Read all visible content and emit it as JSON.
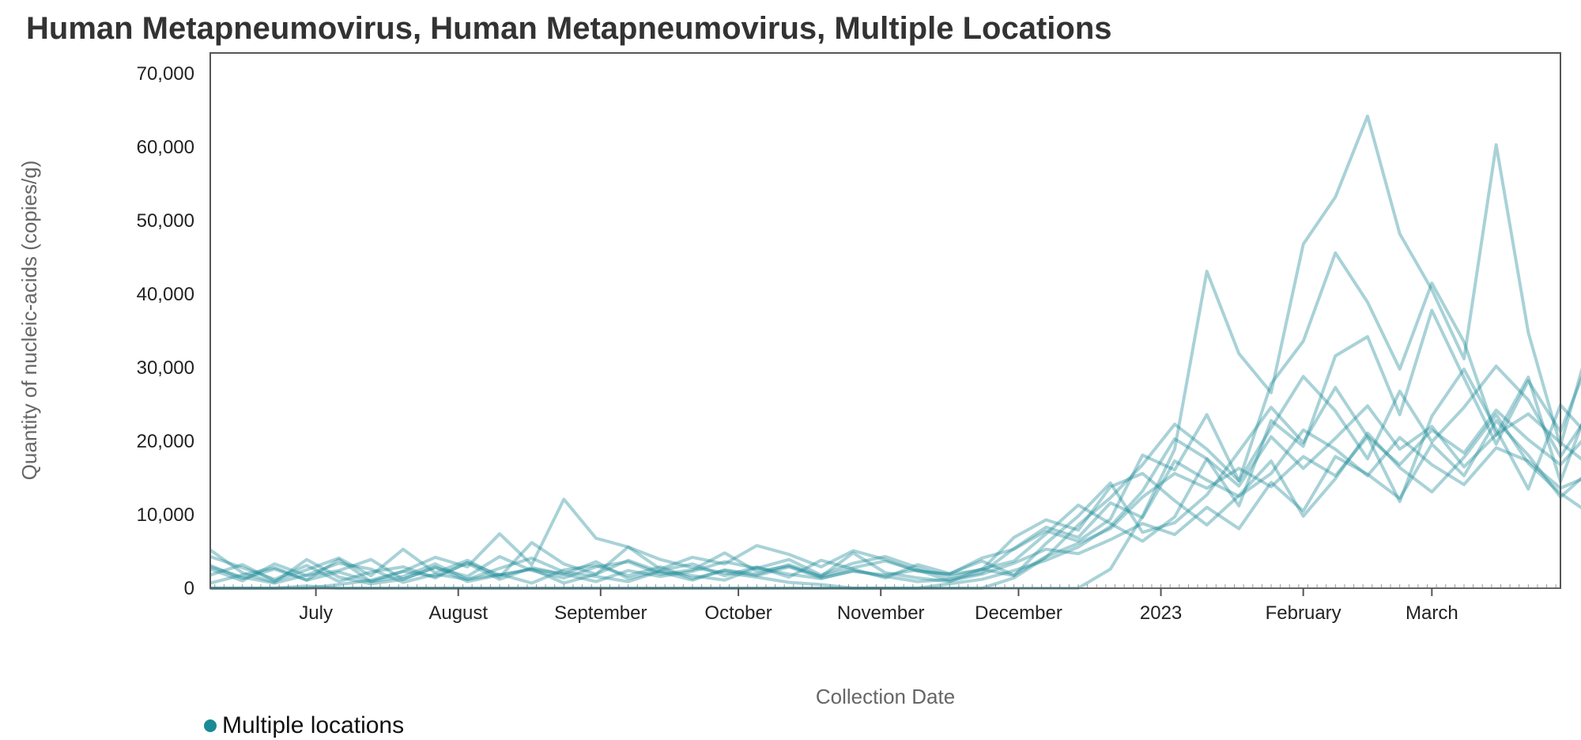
{
  "page": {
    "title": "Human Metapneumovirus, Human Metapneumovirus, Multiple Locations"
  },
  "legend": {
    "label": "Multiple locations",
    "color": "#1a8a96"
  },
  "chart_data": {
    "type": "line",
    "title": "Human Metapneumovirus, Human Metapneumovirus, Multiple Locations",
    "xlabel": "Collection Date",
    "ylabel": "Quantity of nucleic-acids (copies/g)",
    "ylim": [
      0,
      70000
    ],
    "yticks": [
      0,
      10000,
      20000,
      30000,
      40000,
      50000,
      60000,
      70000
    ],
    "ytick_labels": [
      "0",
      "10,000",
      "20,000",
      "30,000",
      "40,000",
      "50,000",
      "60,000",
      "70,000"
    ],
    "xlim": [
      "2022-06-08",
      "2023-03-29"
    ],
    "xticks": [
      {
        "label": "July",
        "date": "2022-07-01"
      },
      {
        "label": "August",
        "date": "2022-08-01"
      },
      {
        "label": "September",
        "date": "2022-09-01"
      },
      {
        "label": "October",
        "date": "2022-10-01"
      },
      {
        "label": "November",
        "date": "2022-11-01"
      },
      {
        "label": "December",
        "date": "2022-12-01"
      },
      {
        "label": "2023",
        "date": "2023-01-01"
      },
      {
        "label": "February",
        "date": "2023-02-01"
      },
      {
        "label": "March",
        "date": "2023-03-01"
      }
    ],
    "line_color": "#1a8a96",
    "series_sampling": "weekly, starting 2022-06-08",
    "series": [
      {
        "name": "Location 1",
        "values": [
          5200,
          2100,
          800,
          3900,
          1500,
          600,
          1200,
          2900,
          900,
          1800,
          2600,
          700,
          1900,
          3800,
          2200,
          1100,
          2500,
          1900,
          3200,
          1600,
          4800,
          2100,
          1400,
          900,
          2600,
          1700,
          6100,
          9800,
          14300,
          7600,
          8900,
          12700,
          18600,
          24600,
          19800,
          27300,
          20600,
          11800,
          23400,
          29800,
          21600,
          13500,
          24900,
          20100,
          12600,
          18700,
          27600,
          14200,
          25900,
          44800,
          31600,
          21300,
          40600,
          27500,
          43600,
          51200,
          24100,
          21800
        ]
      },
      {
        "name": "Location 2",
        "values": [
          3100,
          1300,
          2600,
          1100,
          3900,
          900,
          2300,
          1600,
          3400,
          1200,
          2800,
          1900,
          3600,
          1300,
          2400,
          3300,
          1700,
          2900,
          1500,
          3800,
          2600,
          1400,
          3200,
          2000,
          3700,
          1800,
          4300,
          6100,
          8100,
          12400,
          15600,
          13600,
          16300,
          13800,
          17900,
          15300,
          20600,
          16800,
          21500,
          18400,
          24200,
          20200,
          16800,
          21600,
          17900,
          13800,
          19600,
          16000,
          23400,
          20300,
          26100,
          23600,
          29800,
          25300,
          32600,
          28600,
          26900,
          23700
        ]
      },
      {
        "name": "Location 3",
        "values": [
          0,
          0,
          0,
          300,
          0,
          0,
          0,
          0,
          0,
          0,
          0,
          0,
          0,
          0,
          0,
          0,
          0,
          0,
          0,
          0,
          0,
          0,
          0,
          600,
          1200,
          2400,
          3800,
          5600,
          8400,
          13200,
          20300,
          17600,
          11200,
          22800,
          19300,
          31600,
          34200,
          23600,
          37800,
          28600,
          19600,
          28200,
          21300,
          32300,
          28400,
          14900,
          24300,
          13200,
          22700,
          19000,
          29500,
          21600,
          35200,
          26800,
          42300,
          34200,
          29300,
          27500
        ]
      },
      {
        "name": "Location 4",
        "values": [
          0,
          0,
          0,
          0,
          0,
          0,
          0,
          0,
          0,
          0,
          0,
          0,
          0,
          0,
          0,
          0,
          0,
          0,
          0,
          0,
          0,
          0,
          0,
          0,
          0,
          1400,
          4200,
          8600,
          12300,
          16800,
          22300,
          18900,
          14600,
          27800,
          33600,
          45600,
          38900,
          29800,
          41500,
          33500,
          20800,
          28700,
          14500,
          26200,
          30600,
          11600,
          22900,
          10600,
          28800,
          25000,
          36600,
          27900,
          39200,
          31500,
          45100,
          38600,
          33900,
          31800
        ]
      },
      {
        "name": "Location 5",
        "values": [
          4300,
          2800,
          1200,
          3100,
          900,
          2200,
          2900,
          1400,
          3500,
          1800,
          2600,
          1900,
          900,
          2400,
          1600,
          2300,
          3600,
          2700,
          3900,
          1800,
          3400,
          4300,
          2800,
          1500,
          2600,
          3700,
          7400,
          11300,
          8800,
          6400,
          9700,
          17600,
          13900,
          20600,
          16300,
          20400,
          24800,
          18900,
          22000,
          16500,
          20900,
          23700,
          19800,
          16400,
          21300,
          17300,
          13100,
          18600,
          22600,
          19400,
          25800,
          23100,
          30600,
          27600,
          24900,
          28300,
          24800,
          22600
        ]
      },
      {
        "name": "Location 6",
        "values": [
          2600,
          1000,
          3300,
          1700,
          2400,
          3900,
          1200,
          2800,
          1600,
          4300,
          2400,
          1400,
          2900,
          3600,
          1900,
          2500,
          4800,
          2300,
          3000,
          1600,
          2800,
          3700,
          2400,
          1900,
          2500,
          6900,
          9300,
          7900,
          13800,
          15600,
          11900,
          8600,
          12600,
          17300,
          9800,
          14900,
          21100,
          16400,
          13100,
          17800,
          23600,
          17000,
          12900,
          9900,
          18900,
          15400,
          11300,
          8900,
          15600,
          21600,
          18200,
          14500,
          19800,
          26800,
          17400,
          21400,
          28600,
          26000
        ]
      },
      {
        "name": "Location 7",
        "values": [
          1800,
          3200,
          1000,
          2500,
          4100,
          1700,
          5300,
          2100,
          3800,
          1500,
          6200,
          3300,
          1900,
          5600,
          2600,
          4200,
          3300,
          5800,
          4600,
          2900,
          5100,
          3900,
          2300,
          1900,
          4100,
          5300,
          7800,
          6400,
          9400,
          18100,
          16100,
          23600,
          14600,
          21800,
          28800,
          24100,
          17600,
          26800,
          19900,
          24600,
          30200,
          25600,
          17900,
          24400,
          19200,
          15200,
          21000,
          17300,
          28200,
          24900,
          20800,
          27300,
          23300,
          30600,
          26600,
          29400,
          26200,
          24100
        ]
      },
      {
        "name": "Location 8",
        "values": [
          700,
          1800,
          2800,
          1100,
          2200,
          900,
          1600,
          3300,
          1200,
          1900,
          700,
          2500,
          3100,
          1700,
          2900,
          1300,
          2400,
          1700,
          2900,
          1400,
          2300,
          1800,
          2500,
          1000,
          1900,
          3400,
          5300,
          4700,
          6600,
          8800,
          7300,
          11000,
          8100,
          14400,
          10500,
          17900,
          15500,
          12200,
          19600,
          15300,
          22800,
          18100,
          12400,
          16300,
          13900,
          8700,
          15300,
          11800,
          18600,
          14600,
          22000,
          17800,
          24300,
          20100,
          25700,
          21900,
          18600,
          14600
        ]
      },
      {
        "name": "Location 9",
        "values": [
          0,
          0,
          0,
          0,
          500,
          1100,
          2300,
          4200,
          2900,
          7400,
          3200,
          12100,
          6800,
          5600,
          3900,
          2800,
          2100,
          1500,
          800,
          500,
          0,
          0,
          0,
          0,
          0,
          0,
          0,
          0,
          2600,
          9800,
          18900,
          43100,
          31900,
          26600,
          46800,
          53200,
          64200,
          48200,
          40600,
          31200,
          60300,
          34800,
          19400,
          34900,
          40900,
          21700,
          24300,
          17800,
          48200,
          31800,
          49600,
          38700,
          45800,
          64500,
          50600,
          29300,
          50400,
          54800
        ]
      },
      {
        "name": "Location 10",
        "values": [
          2900,
          1500,
          700,
          1800,
          3400,
          2600,
          800,
          1900,
          1200,
          2700,
          4100,
          2200,
          1600,
          900,
          2300,
          1700,
          1100,
          2800,
          1900,
          1300,
          2400,
          1600,
          900,
          1200,
          2100,
          5400,
          8300,
          6900,
          11600,
          9600,
          17300,
          14700,
          12500,
          15600,
          21500,
          18900,
          15300,
          20500,
          16800,
          14100,
          19100,
          17300,
          13600,
          15500,
          11400,
          9300,
          14200,
          11300,
          16600,
          13900,
          18700,
          15900,
          20800,
          17300,
          19300,
          16400,
          14900,
          13400
        ]
      }
    ]
  },
  "axes": {
    "y_ticks": [
      "0",
      "10,000",
      "20,000",
      "30,000",
      "40,000",
      "50,000",
      "60,000",
      "70,000"
    ],
    "x_ticks": [
      "July",
      "August",
      "September",
      "October",
      "November",
      "December",
      "2023",
      "February",
      "March"
    ],
    "x_title": "Collection Date",
    "y_title": "Quantity of nucleic-acids (copies/g)"
  }
}
